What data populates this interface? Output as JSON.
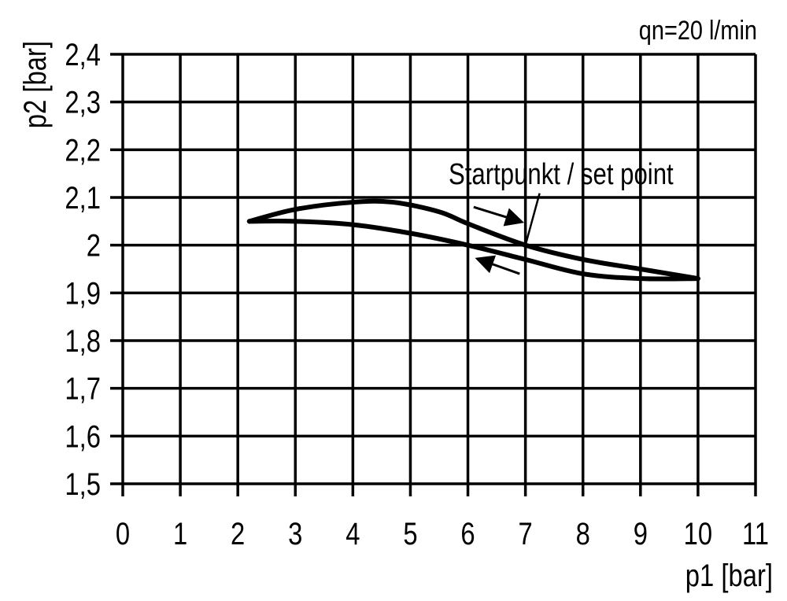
{
  "chart_data": {
    "type": "line",
    "title": "qn=20 l/min",
    "xlabel": "p1 [bar]",
    "ylabel": "p2 [bar]",
    "xlim": [
      0,
      11
    ],
    "ylim": [
      1.5,
      2.4
    ],
    "grid": true,
    "x_ticks": [
      "0",
      "1",
      "2",
      "3",
      "4",
      "5",
      "6",
      "7",
      "8",
      "9",
      "10",
      "11"
    ],
    "y_ticks": [
      "1,5",
      "1,6",
      "1,7",
      "1,8",
      "1,9",
      "2",
      "2,1",
      "2,2",
      "2,3",
      "2,4"
    ],
    "line_color": "#000000",
    "series": [
      {
        "x": [
          2.2,
          3,
          4,
          4.7,
          5.5,
          6,
          7,
          8,
          9,
          10
        ],
        "y": [
          2.05,
          2.075,
          2.09,
          2.09,
          2.07,
          2.045,
          2.0,
          1.97,
          1.95,
          1.93
        ]
      },
      {
        "x": [
          2.2,
          3,
          4,
          5,
          6,
          7,
          8,
          9,
          10
        ],
        "y": [
          2.05,
          2.05,
          2.043,
          2.025,
          2.0,
          1.97,
          1.94,
          1.93,
          1.93
        ]
      }
    ],
    "annotations": [
      {
        "text": "Startpunkt / set point",
        "x": 7,
        "y": 2.0
      },
      {
        "arrow": "right",
        "from": [
          6.1,
          2.08
        ],
        "to": [
          6.9,
          2.05
        ]
      },
      {
        "arrow": "left",
        "from": [
          6.9,
          1.94
        ],
        "to": [
          6.2,
          1.97
        ]
      }
    ]
  }
}
